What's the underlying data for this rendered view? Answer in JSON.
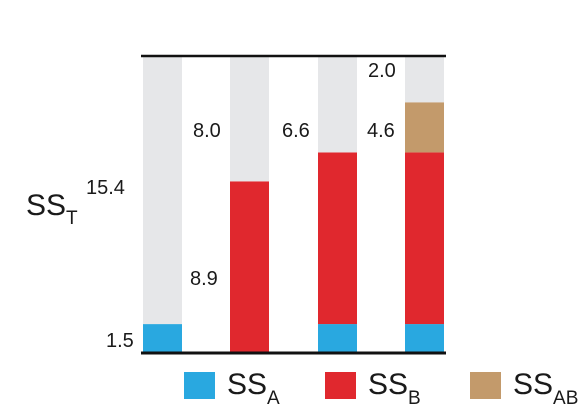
{
  "chart_data": {
    "type": "bar",
    "stacked": true,
    "total": 15.4,
    "bars": [
      {
        "components": [
          {
            "key": "A",
            "value": 1.5
          },
          {
            "key": "rest",
            "value": 13.9
          }
        ]
      },
      {
        "components": [
          {
            "key": "B",
            "value": 8.9
          },
          {
            "key": "rest",
            "value": 6.5
          }
        ]
      },
      {
        "components": [
          {
            "key": "A",
            "value": 1.5
          },
          {
            "key": "B",
            "value": 8.9
          },
          {
            "key": "rest",
            "value": 5.0
          }
        ]
      },
      {
        "components": [
          {
            "key": "A",
            "value": 1.5
          },
          {
            "key": "B",
            "value": 8.9
          },
          {
            "key": "AB",
            "value": 2.6
          },
          {
            "key": "rest",
            "value": 2.4
          }
        ]
      }
    ],
    "annotations": [
      {
        "id": "total",
        "text": "15.4"
      },
      {
        "id": "a",
        "text": "1.5"
      },
      {
        "id": "b",
        "text": "8.9"
      },
      {
        "id": "r2",
        "text": "8.0"
      },
      {
        "id": "r3",
        "text": "6.6"
      },
      {
        "id": "r4",
        "text": "4.6"
      },
      {
        "id": "r5",
        "text": "2.0"
      }
    ],
    "ylabel": {
      "main": "SS",
      "sub": "T"
    },
    "legend": {
      "position": "bottom",
      "items": [
        {
          "key": "A",
          "main": "SS",
          "sub": "A"
        },
        {
          "key": "B",
          "main": "SS",
          "sub": "B"
        },
        {
          "key": "AB",
          "main": "SS",
          "sub": "AB"
        }
      ]
    },
    "colors": {
      "A": "#29a8e0",
      "B": "#e0282e",
      "AB": "#c39a6b",
      "rest": "#e6e7e9",
      "axis": "#111111"
    }
  }
}
